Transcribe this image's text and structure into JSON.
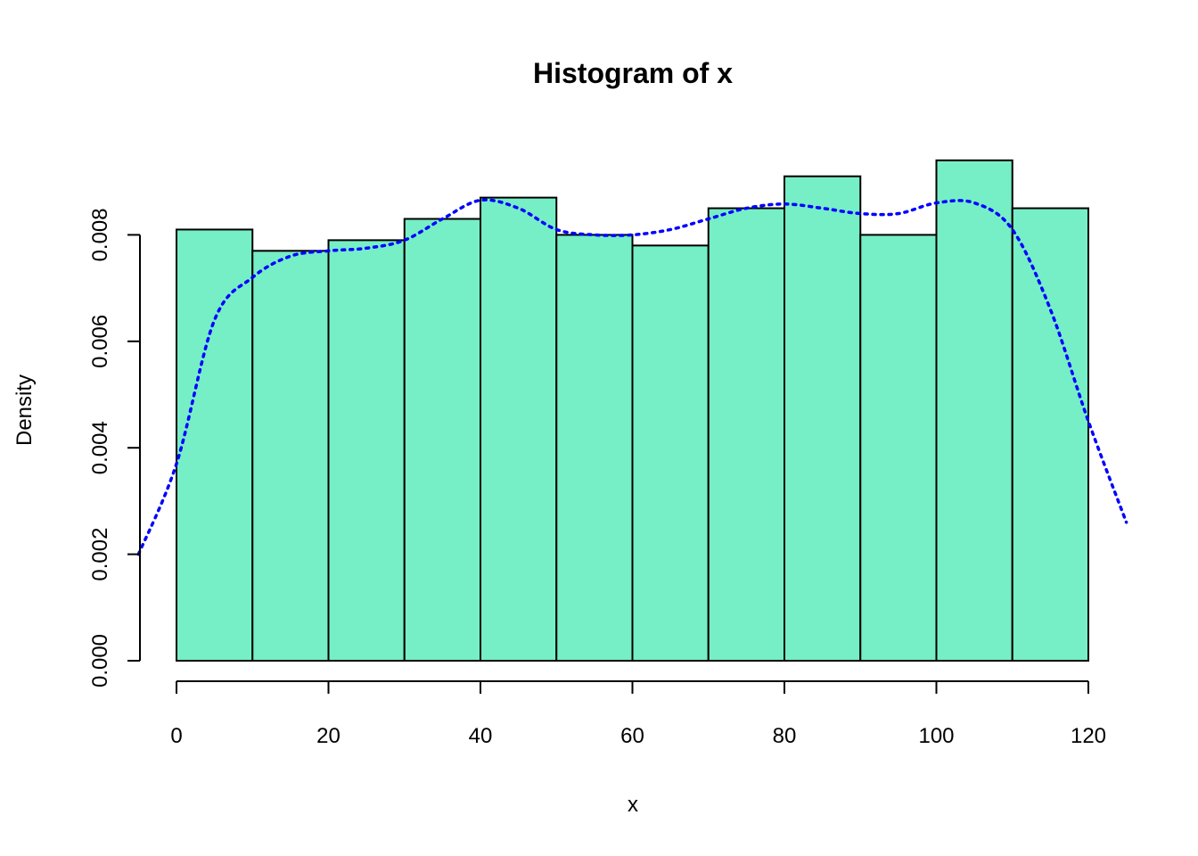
{
  "chart_data": {
    "type": "bar",
    "title": "Histogram of x",
    "xlabel": "x",
    "ylabel": "Density",
    "bins": [
      {
        "start": 0,
        "end": 10,
        "density": 0.0081
      },
      {
        "start": 10,
        "end": 20,
        "density": 0.0077
      },
      {
        "start": 20,
        "end": 30,
        "density": 0.0079
      },
      {
        "start": 30,
        "end": 40,
        "density": 0.0083
      },
      {
        "start": 40,
        "end": 50,
        "density": 0.0087
      },
      {
        "start": 50,
        "end": 60,
        "density": 0.008
      },
      {
        "start": 60,
        "end": 70,
        "density": 0.0078
      },
      {
        "start": 70,
        "end": 80,
        "density": 0.0085
      },
      {
        "start": 80,
        "end": 90,
        "density": 0.0091
      },
      {
        "start": 90,
        "end": 100,
        "density": 0.008
      },
      {
        "start": 100,
        "end": 110,
        "density": 0.0094
      },
      {
        "start": 110,
        "end": 120,
        "density": 0.0085
      }
    ],
    "density_curve": {
      "x": [
        -5,
        0,
        5,
        10,
        15,
        20,
        25,
        30,
        35,
        40,
        45,
        50,
        55,
        60,
        65,
        70,
        75,
        80,
        85,
        90,
        95,
        100,
        105,
        110,
        115,
        120,
        125
      ],
      "y": [
        0.002,
        0.0037,
        0.0064,
        0.0072,
        0.0076,
        0.0077,
        0.00775,
        0.0079,
        0.0083,
        0.00865,
        0.0085,
        0.0081,
        0.008,
        0.008,
        0.0081,
        0.0083,
        0.0085,
        0.00858,
        0.0085,
        0.0084,
        0.0084,
        0.0086,
        0.0086,
        0.0081,
        0.0066,
        0.0045,
        0.0026
      ]
    },
    "x_ticks": [
      0,
      20,
      40,
      60,
      80,
      100,
      120
    ],
    "y_ticks": [
      "0.000",
      "0.002",
      "0.004",
      "0.006",
      "0.008"
    ],
    "xlim": [
      -5,
      125
    ],
    "ylim": [
      0,
      0.0094
    ],
    "bar_color": "#76EEC6",
    "bar_border_color": "#000000",
    "curve_color": "#0000FF",
    "curve_style": "dotted",
    "grid": false,
    "legend": "none"
  }
}
